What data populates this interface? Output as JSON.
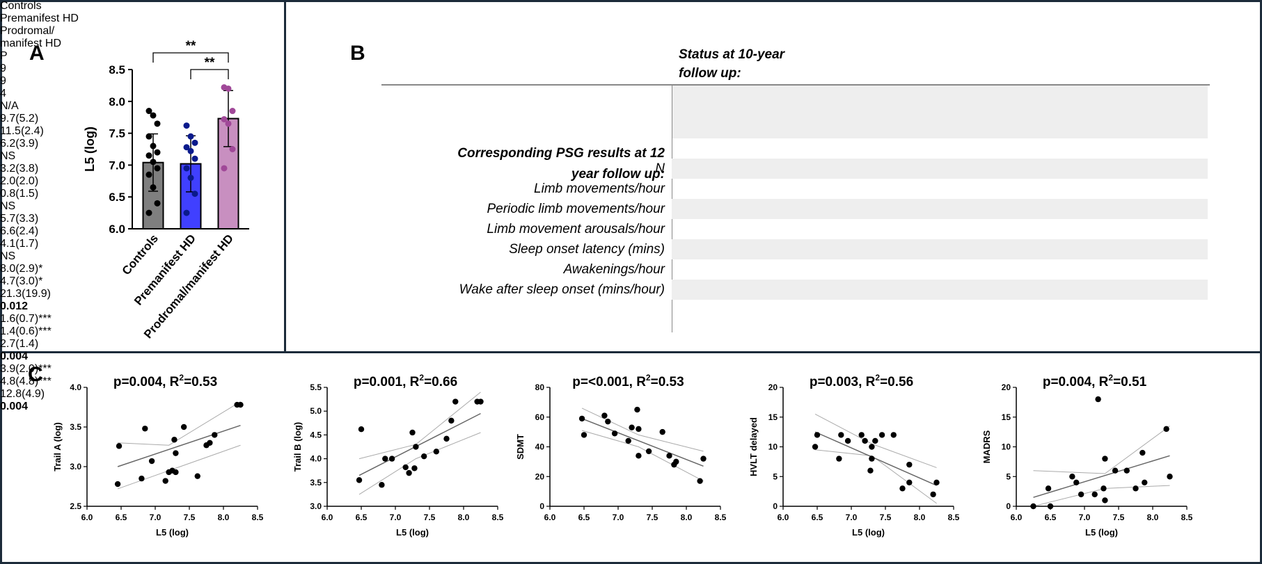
{
  "panels": {
    "a": "A",
    "b": "B",
    "c": "C"
  },
  "table": {
    "header_title": [
      "Status at 10-year",
      "follow up:"
    ],
    "section_title": [
      "Corresponding PSG results at 12",
      "year follow up:"
    ],
    "columns": [
      "Controls",
      "Premanifest HD",
      "Prodromal/",
      "P"
    ],
    "column3_line2": "manifest HD",
    "rows": [
      {
        "label": "N",
        "values": [
          "9",
          "9",
          "4",
          "N/A"
        ],
        "p_bold": false
      },
      {
        "label": "Limb movements/hour",
        "values": [
          "9.7(5.2)",
          "11.5(2.4)",
          "6.2(3.9)",
          "NS"
        ],
        "p_bold": false
      },
      {
        "label": "Periodic limb movements/hour",
        "values": [
          "3.2(3.8)",
          "2.0(2.0)",
          "0.8(1.5)",
          "NS"
        ],
        "p_bold": false
      },
      {
        "label": "Limb movement arousals/hour",
        "values": [
          "5.7(3.3)",
          "6.6(2.4)",
          "4.1(1.7)",
          "NS"
        ],
        "p_bold": false
      },
      {
        "label": "Sleep onset latency (mins)",
        "values": [
          "8.0(2.9)*",
          "4.7(3.0)*",
          "21.3(19.9)",
          "0.012"
        ],
        "p_bold": true
      },
      {
        "label": "Awakenings/hour",
        "values": [
          "1.6(0.7)***",
          "1.4(0.6)***",
          "2.7(1.4)",
          "0.004"
        ],
        "p_bold": true
      },
      {
        "label": "Wake after sleep onset (mins/hour)",
        "values": [
          "3.9(2.0)***",
          "4.8(4.8)***",
          "12.8(4.9)",
          "0.004"
        ],
        "p_bold": true
      }
    ]
  },
  "chart_data": [
    {
      "type": "bar",
      "panel": "A",
      "ylabel": "L5 (log)",
      "ylim": [
        6.0,
        8.5
      ],
      "yticks": [
        "6.0",
        "6.5",
        "7.0",
        "7.5",
        "8.0",
        "8.5"
      ],
      "categories": [
        "Controls",
        "Premanifest HD",
        "Prodromal/manifest HD"
      ],
      "values": [
        7.04,
        7.02,
        7.73
      ],
      "errors": [
        0.45,
        0.44,
        0.44
      ],
      "colors": [
        "#7f7f7f",
        "#4040ff",
        "#c88fc0"
      ],
      "point_colors": [
        "#000000",
        "#0a1a8c",
        "#a04898"
      ],
      "points": [
        [
          7.85,
          7.78,
          7.65,
          7.45,
          7.3,
          7.2,
          7.15,
          7.05,
          6.95,
          6.85,
          6.65,
          6.4,
          6.25
        ],
        [
          7.62,
          7.45,
          7.35,
          7.28,
          7.22,
          7.1,
          6.95,
          6.8,
          6.55,
          6.25
        ],
        [
          8.22,
          8.2,
          7.85,
          7.72,
          7.65,
          7.25,
          6.95
        ]
      ],
      "significance": [
        {
          "from": 0,
          "to": 2,
          "label": "**"
        },
        {
          "from": 1,
          "to": 2,
          "label": "**"
        }
      ]
    },
    {
      "type": "scatter",
      "title": "p=0.004, R",
      "title_tail": "=0.53",
      "xlabel": "L5 (log)",
      "ylabel": "Trail A (log)",
      "xlim": [
        6.0,
        8.5
      ],
      "ylim": [
        2.5,
        4.0
      ],
      "xticks": [
        "6.0",
        "6.5",
        "7.0",
        "7.5",
        "8.0",
        "8.5"
      ],
      "yticks": [
        "2.5",
        "3.0",
        "3.5",
        "4.0"
      ],
      "x": [
        6.45,
        6.47,
        6.8,
        6.85,
        6.95,
        7.15,
        7.2,
        7.25,
        7.28,
        7.3,
        7.3,
        7.42,
        7.62,
        7.75,
        7.8,
        7.87,
        8.2,
        8.25
      ],
      "y": [
        2.78,
        3.26,
        2.85,
        3.48,
        3.07,
        2.82,
        2.93,
        2.95,
        3.34,
        3.17,
        2.93,
        3.5,
        2.88,
        3.27,
        3.3,
        3.4,
        3.78,
        3.78
      ],
      "fit": [
        [
          6.45,
          3.0
        ],
        [
          8.25,
          3.52
        ]
      ],
      "ci_upper": [
        [
          6.45,
          3.3
        ],
        [
          7.2,
          3.27
        ],
        [
          8.25,
          3.82
        ]
      ],
      "ci_lower": [
        [
          6.45,
          2.72
        ],
        [
          7.2,
          2.95
        ],
        [
          8.25,
          3.27
        ]
      ]
    },
    {
      "type": "scatter",
      "title": "p=0.001, R",
      "title_tail": "=0.66",
      "xlabel": "L5 (log)",
      "ylabel": "Trail B (log)",
      "xlim": [
        6.0,
        8.5
      ],
      "ylim": [
        3.0,
        5.5
      ],
      "xticks": [
        "6.0",
        "6.5",
        "7.0",
        "7.5",
        "8.0",
        "8.5"
      ],
      "yticks": [
        "3.0",
        "3.5",
        "4.0",
        "4.5",
        "5.0",
        "5.5"
      ],
      "x": [
        6.47,
        6.5,
        6.8,
        6.85,
        6.95,
        7.15,
        7.2,
        7.25,
        7.28,
        7.3,
        7.42,
        7.6,
        7.75,
        7.82,
        7.88,
        8.2,
        8.25
      ],
      "y": [
        3.55,
        4.62,
        3.45,
        4.0,
        4.0,
        3.82,
        3.7,
        4.55,
        3.8,
        4.25,
        4.05,
        4.15,
        4.42,
        4.8,
        5.2,
        5.2,
        5.2
      ],
      "fit": [
        [
          6.47,
          3.65
        ],
        [
          8.25,
          4.95
        ]
      ],
      "ci_upper": [
        [
          6.47,
          4.0
        ],
        [
          7.3,
          4.3
        ],
        [
          8.25,
          5.4
        ]
      ],
      "ci_lower": [
        [
          6.47,
          3.25
        ],
        [
          7.3,
          4.0
        ],
        [
          8.25,
          4.55
        ]
      ]
    },
    {
      "type": "scatter",
      "title": "p=<0.001, R",
      "title_tail": "=0.53",
      "xlabel": "",
      "ylabel": "SDMT",
      "xlim": [
        6.0,
        8.5
      ],
      "ylim": [
        0,
        80
      ],
      "xticks": [
        "6.0",
        "6.5",
        "7.0",
        "7.5",
        "8.0",
        "8.5"
      ],
      "yticks": [
        "0",
        "20",
        "40",
        "60",
        "80"
      ],
      "x": [
        6.47,
        6.5,
        6.8,
        6.85,
        6.95,
        7.15,
        7.2,
        7.28,
        7.3,
        7.3,
        7.45,
        7.65,
        7.75,
        7.82,
        7.85,
        8.2,
        8.25
      ],
      "y": [
        59,
        48,
        61,
        57,
        49,
        44,
        53,
        65,
        34,
        52,
        37,
        50,
        34,
        28,
        30,
        17,
        32
      ],
      "fit": [
        [
          6.47,
          59
        ],
        [
          8.25,
          27
        ]
      ],
      "ci_upper": [
        [
          6.47,
          66
        ],
        [
          7.3,
          48
        ],
        [
          8.25,
          37
        ]
      ],
      "ci_lower": [
        [
          6.47,
          51
        ],
        [
          7.3,
          40
        ],
        [
          8.25,
          17
        ]
      ]
    },
    {
      "type": "scatter",
      "title": "p=0.003, R",
      "title_tail": "=0.56",
      "xlabel": "L5 (log)",
      "ylabel": "HVLT delayed",
      "xlim": [
        6.0,
        8.5
      ],
      "ylim": [
        0,
        20
      ],
      "xticks": [
        "6.0",
        "6.5",
        "7.0",
        "7.5",
        "8.0",
        "8.5"
      ],
      "yticks": [
        "0",
        "5",
        "10",
        "15",
        "20"
      ],
      "x": [
        6.47,
        6.5,
        6.82,
        6.85,
        6.95,
        7.15,
        7.2,
        7.28,
        7.3,
        7.3,
        7.35,
        7.45,
        7.62,
        7.75,
        7.85,
        7.85,
        8.2,
        8.25
      ],
      "y": [
        10,
        12,
        8,
        12,
        11,
        12,
        11,
        6,
        8,
        10,
        11,
        12,
        12,
        3,
        7,
        4,
        2,
        4
      ],
      "fit": [
        [
          6.47,
          12.5
        ],
        [
          8.25,
          3.5
        ]
      ],
      "ci_upper": [
        [
          6.47,
          15.5
        ],
        [
          7.3,
          10.5
        ],
        [
          8.25,
          6.5
        ]
      ],
      "ci_lower": [
        [
          6.47,
          9.5
        ],
        [
          7.3,
          8.5
        ],
        [
          8.25,
          0.5
        ]
      ]
    },
    {
      "type": "scatter",
      "title": "p=0.004, R",
      "title_tail": "=0.51",
      "xlabel": "L5 (log)",
      "ylabel": "MADRS",
      "xlim": [
        6.0,
        8.5
      ],
      "ylim": [
        0,
        20
      ],
      "xticks": [
        "6.0",
        "6.5",
        "7.0",
        "7.5",
        "8.0",
        "8.5"
      ],
      "yticks": [
        "0",
        "5",
        "10",
        "15",
        "20"
      ],
      "x": [
        6.25,
        6.47,
        6.5,
        6.82,
        6.88,
        6.95,
        7.15,
        7.2,
        7.28,
        7.3,
        7.3,
        7.45,
        7.62,
        7.75,
        7.85,
        7.88,
        8.2,
        8.25
      ],
      "y": [
        0,
        3,
        0,
        5,
        4,
        2,
        2,
        18,
        3,
        8,
        1,
        6,
        6,
        3,
        9,
        4,
        13,
        5
      ],
      "fit": [
        [
          6.25,
          1.5
        ],
        [
          8.25,
          8.5
        ]
      ],
      "ci_upper": [
        [
          6.25,
          6.0
        ],
        [
          7.3,
          5.5
        ],
        [
          8.25,
          13.5
        ]
      ],
      "ci_lower": [
        [
          6.25,
          -3.0
        ],
        [
          7.3,
          3.0
        ],
        [
          8.25,
          3.5
        ]
      ]
    }
  ]
}
